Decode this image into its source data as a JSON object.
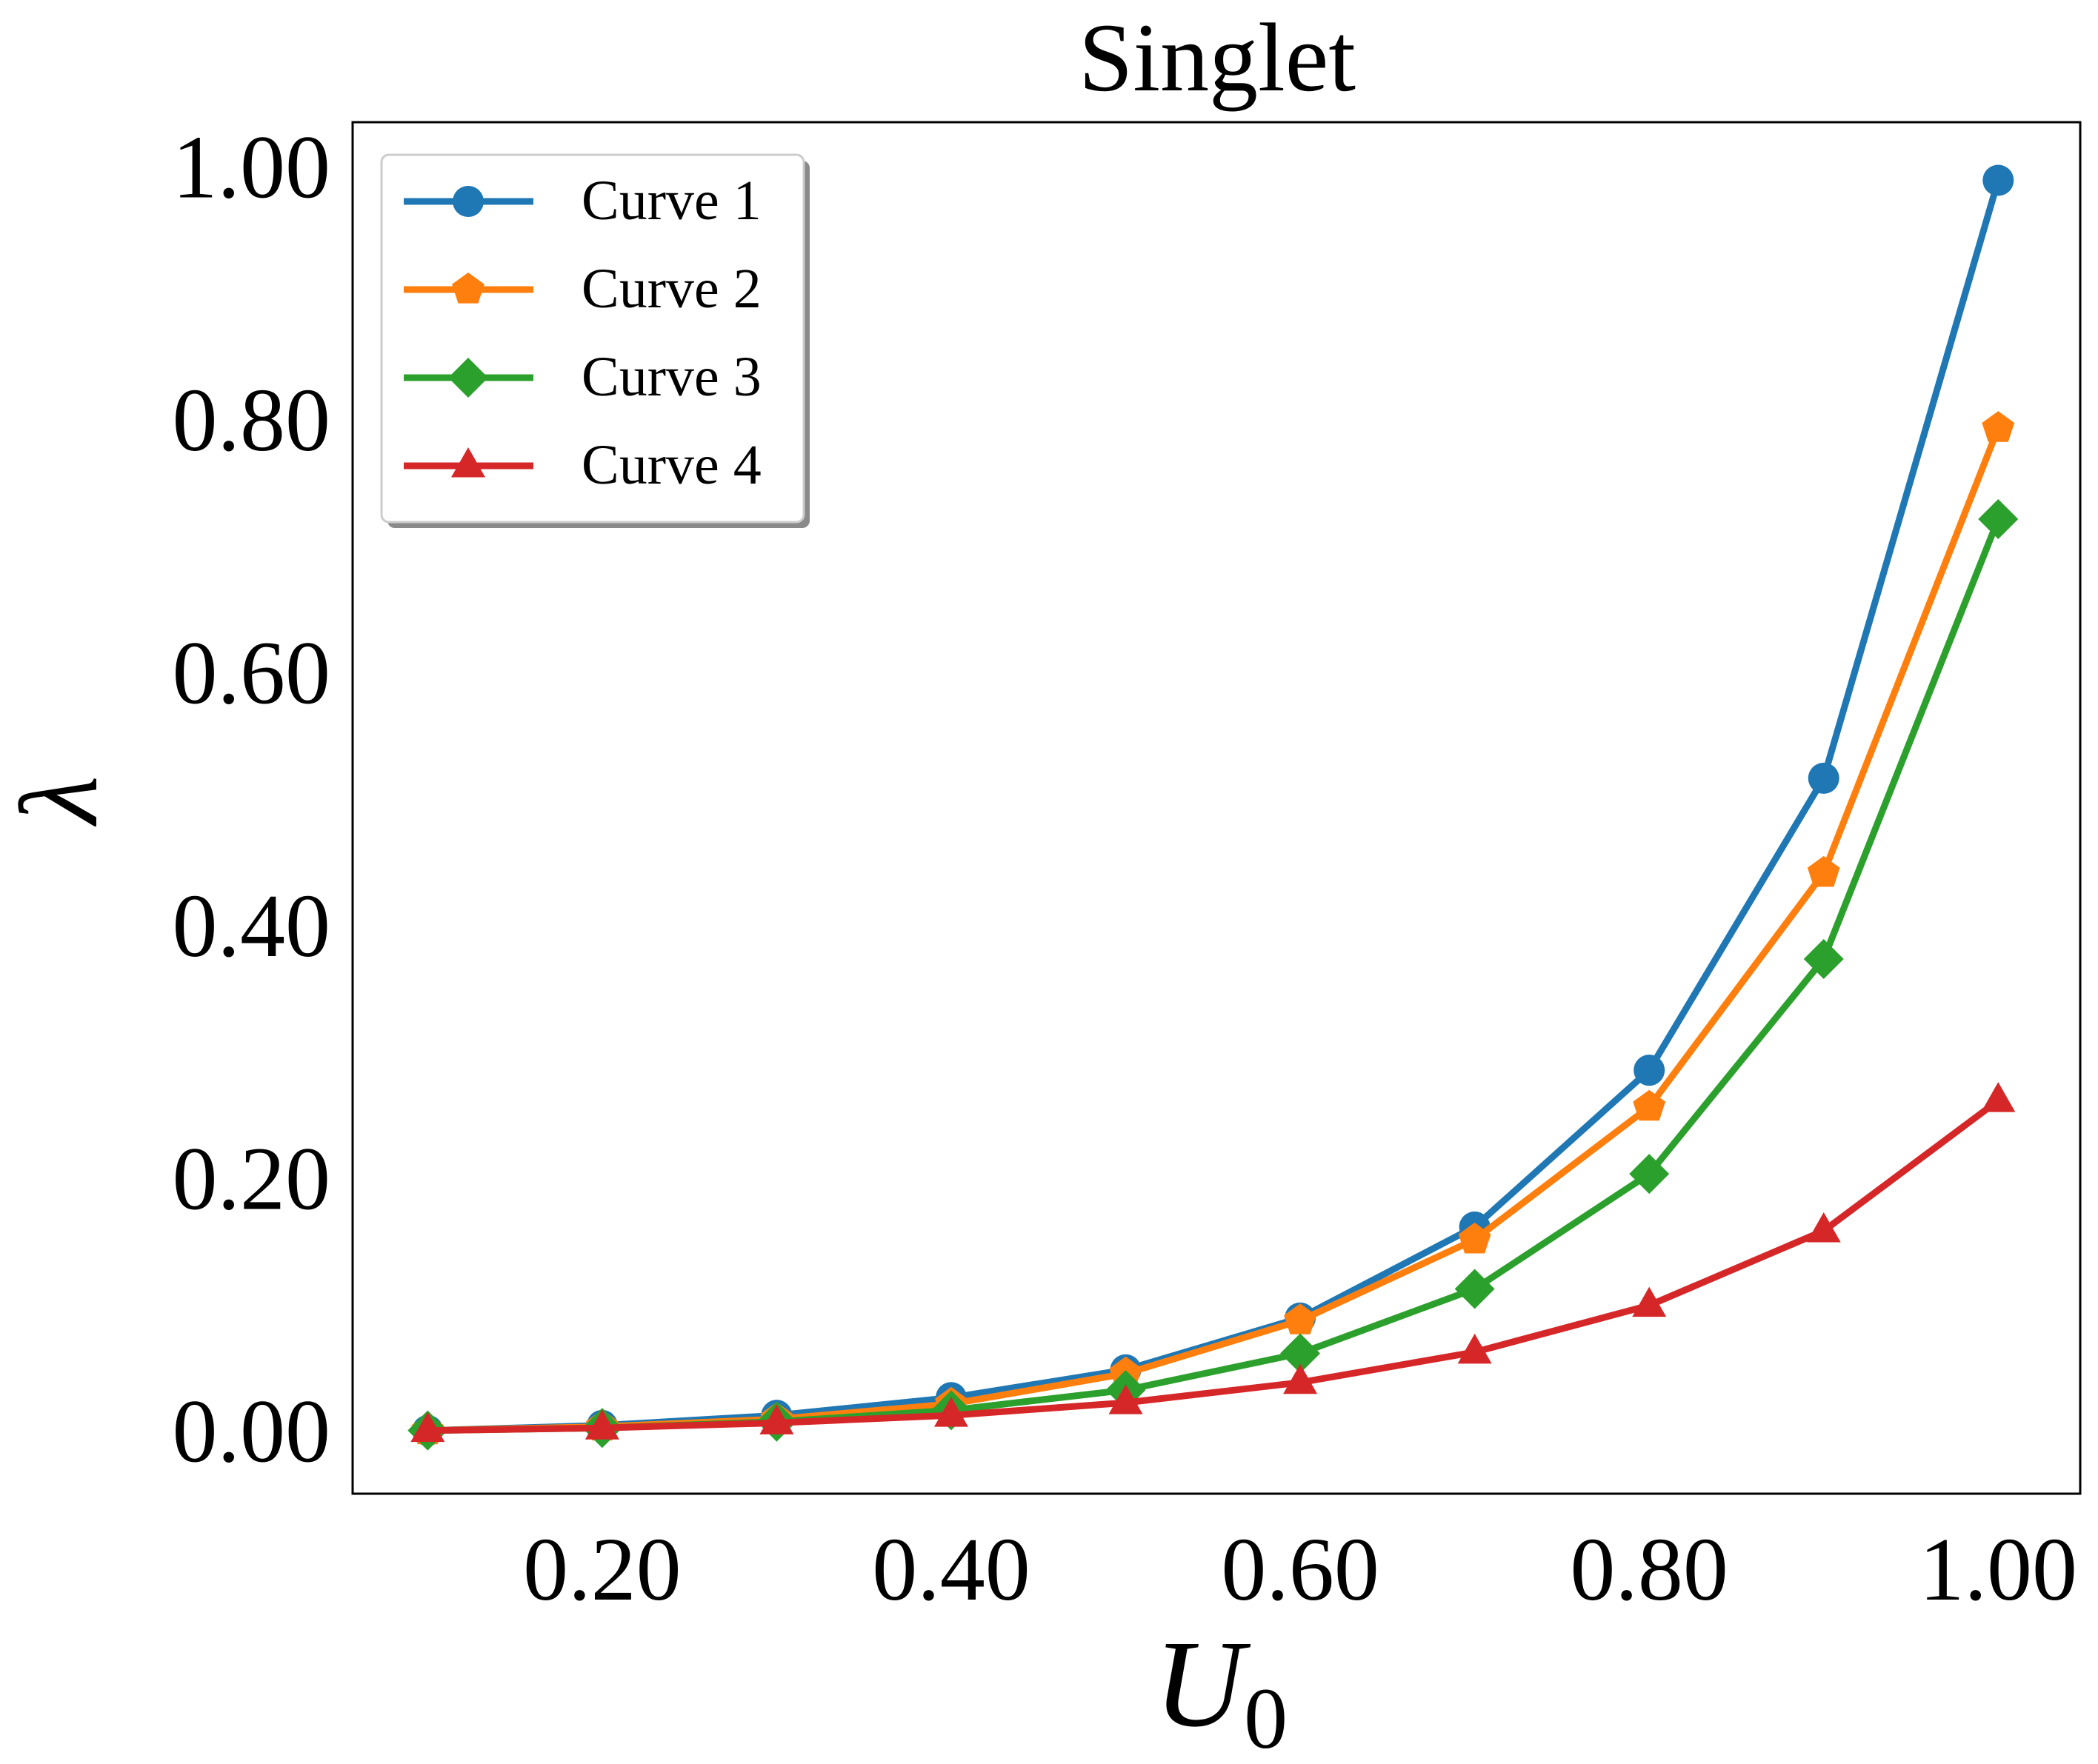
{
  "chart_data": {
    "type": "line",
    "title": "Singlet",
    "xlabel": "U",
    "xlabel_subscript": "0",
    "ylabel": "λ",
    "x": [
      0.1,
      0.2,
      0.3,
      0.4,
      0.5,
      0.6,
      0.7,
      0.8,
      0.9,
      1.0
    ],
    "xlim": [
      0.057,
      1.047
    ],
    "ylim": [
      -0.05,
      1.035
    ],
    "xticks": [
      0.2,
      0.4,
      0.6,
      0.8,
      1.0
    ],
    "xtick_labels": [
      "0.20",
      "0.40",
      "0.60",
      "0.80",
      "1.00"
    ],
    "yticks": [
      0.0,
      0.2,
      0.4,
      0.6,
      0.8,
      1.0
    ],
    "ytick_labels": [
      "0.00",
      "0.20",
      "0.40",
      "0.60",
      "0.80",
      "1.00"
    ],
    "grid": false,
    "legend_position": "top-left",
    "series": [
      {
        "name": "Curve 1",
        "color": "#1f77b4",
        "marker": "circle",
        "values": [
          0.0,
          0.004,
          0.012,
          0.026,
          0.048,
          0.089,
          0.161,
          0.285,
          0.516,
          0.989
        ]
      },
      {
        "name": "Curve 2",
        "color": "#ff7f0e",
        "marker": "pentagon",
        "values": [
          0.0,
          0.003,
          0.009,
          0.021,
          0.045,
          0.087,
          0.151,
          0.256,
          0.441,
          0.793
        ]
      },
      {
        "name": "Curve 3",
        "color": "#2ca02c",
        "marker": "diamond",
        "values": [
          0.0,
          0.002,
          0.007,
          0.016,
          0.032,
          0.061,
          0.112,
          0.203,
          0.373,
          0.721
        ]
      },
      {
        "name": "Curve 4",
        "color": "#d62728",
        "marker": "triangle",
        "values": [
          0.0,
          0.002,
          0.006,
          0.012,
          0.022,
          0.038,
          0.062,
          0.099,
          0.158,
          0.261
        ]
      }
    ]
  }
}
